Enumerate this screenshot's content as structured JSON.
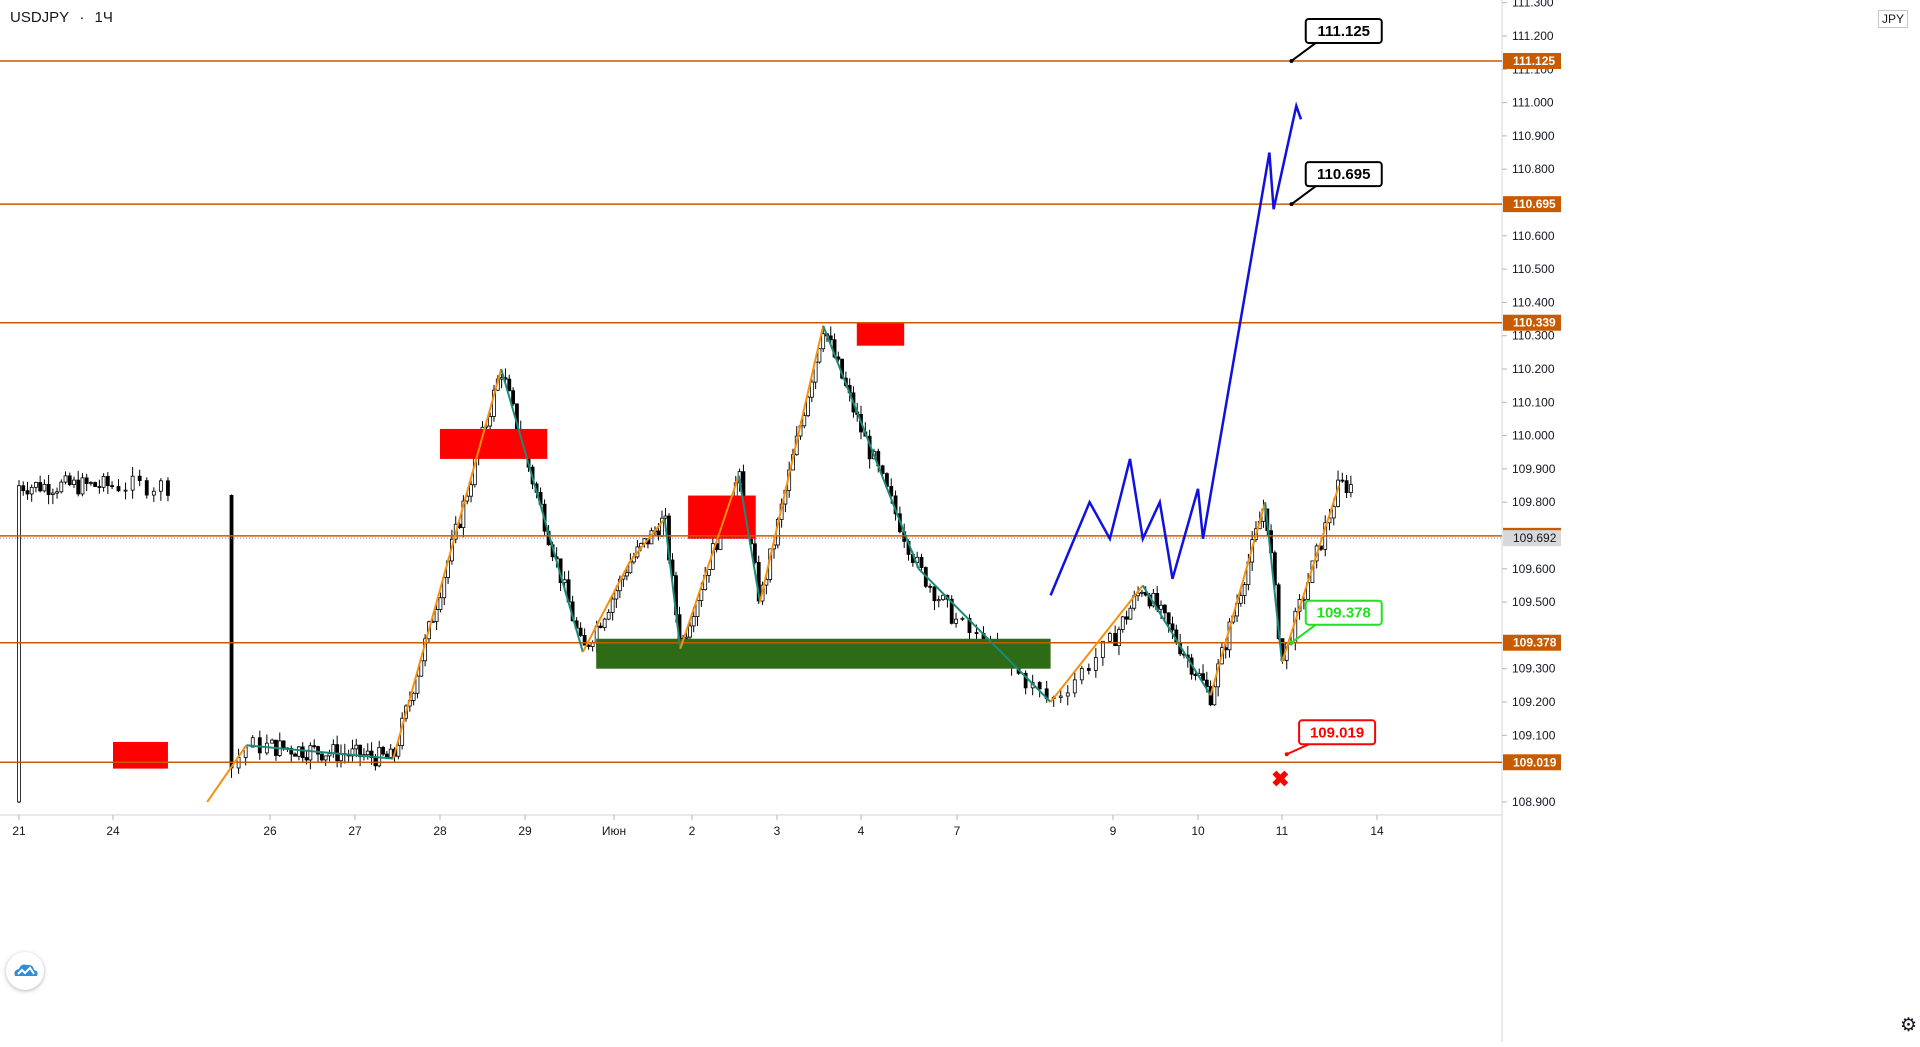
{
  "header": {
    "symbol": "USDJPY",
    "separator": "·",
    "interval": "1Ч"
  },
  "currency": "JPY",
  "logo_icon": "tradingview-cloud-icon",
  "settings_icon": "gear-icon",
  "colors": {
    "level_line": "#c85a00",
    "candle": "#000000",
    "resistance_zone": "#ff0000",
    "support_zone": "#2e6b17",
    "zigzag_up": "#f5900f",
    "zigzag_down": "#1a8a7a",
    "forecast": "#1010e0",
    "target_label_border": "#000000",
    "entry_label_border": "#20e020",
    "stop_label_border": "#ff0000"
  },
  "chart_data": {
    "type": "candlestick",
    "ylim": [
      108.85,
      111.3
    ],
    "y_ticks": [
      "111.300",
      "111.200",
      "111.100",
      "111.000",
      "110.900",
      "110.800",
      "110.600",
      "110.500",
      "110.400",
      "110.300",
      "110.200",
      "110.100",
      "110.000",
      "109.900",
      "109.800",
      "109.600",
      "109.500",
      "109.300",
      "109.200",
      "109.100",
      "108.900"
    ],
    "x_ticks": [
      {
        "label": "21",
        "x": 0
      },
      {
        "label": "24",
        "x": 1
      },
      {
        "label": "26",
        "x": 2
      },
      {
        "label": "27",
        "x": 3
      },
      {
        "label": "28",
        "x": 4
      },
      {
        "label": "29",
        "x": 5
      },
      {
        "label": "Июн",
        "x": 6
      },
      {
        "label": "2",
        "x": 7
      },
      {
        "label": "3",
        "x": 8
      },
      {
        "label": "4",
        "x": 9
      },
      {
        "label": "7",
        "x": 10
      },
      {
        "label": "9",
        "x": 11
      },
      {
        "label": "10",
        "x": 12
      },
      {
        "label": "11",
        "x": 13
      },
      {
        "label": "14",
        "x": 14
      }
    ],
    "levels": [
      {
        "price": 111.125,
        "label": "111.125"
      },
      {
        "price": 110.695,
        "label": "110.695"
      },
      {
        "price": 110.339,
        "label": "110.339"
      },
      {
        "price": 109.699,
        "label": "109.699"
      },
      {
        "price": 109.378,
        "label": "109.378"
      },
      {
        "price": 109.019,
        "label": "109.019"
      }
    ],
    "current_price": {
      "price": 109.692,
      "label": "109.692"
    },
    "annotations": [
      {
        "kind": "target",
        "text": "111.125",
        "price": 111.125
      },
      {
        "kind": "target",
        "text": "110.695",
        "price": 110.695
      },
      {
        "kind": "entry",
        "text": "109.378",
        "price": 109.378
      },
      {
        "kind": "stop",
        "text": "109.019",
        "price": 109.019
      }
    ],
    "zones": [
      {
        "kind": "resistance",
        "x": [
          1.0,
          1.35
        ],
        "y": [
          109.0,
          109.08
        ]
      },
      {
        "kind": "resistance",
        "x": [
          4.0,
          5.25
        ],
        "y": [
          109.93,
          110.02
        ]
      },
      {
        "kind": "resistance",
        "x": [
          6.95,
          7.75
        ],
        "y": [
          109.69,
          109.82
        ]
      },
      {
        "kind": "resistance",
        "x": [
          8.95,
          9.45
        ],
        "y": [
          110.27,
          110.34
        ]
      },
      {
        "kind": "support",
        "x": [
          5.8,
          10.6
        ],
        "y": [
          109.3,
          109.39
        ]
      }
    ],
    "zigzag": [
      [
        1.6,
        108.9
      ],
      [
        1.85,
        109.07
      ],
      [
        3.45,
        109.03
      ],
      [
        4.72,
        110.2
      ],
      [
        5.65,
        109.35
      ],
      [
        6.2,
        109.62
      ],
      [
        6.65,
        109.75
      ],
      [
        6.85,
        109.36
      ],
      [
        7.55,
        109.88
      ],
      [
        7.8,
        109.5
      ],
      [
        8.55,
        110.33
      ],
      [
        9.6,
        109.6
      ],
      [
        10.6,
        109.2
      ],
      [
        11.35,
        109.55
      ],
      [
        12.15,
        109.22
      ],
      [
        12.8,
        109.8
      ],
      [
        13.0,
        109.32
      ],
      [
        13.6,
        109.85
      ]
    ],
    "forecast": [
      [
        10.6,
        109.52
      ],
      [
        10.85,
        109.8
      ],
      [
        10.98,
        109.69
      ],
      [
        11.2,
        109.93
      ],
      [
        11.35,
        109.69
      ],
      [
        11.55,
        109.8
      ],
      [
        11.7,
        109.57
      ],
      [
        12.0,
        109.84
      ],
      [
        12.06,
        109.69
      ],
      [
        12.85,
        110.85
      ],
      [
        12.9,
        110.68
      ],
      [
        13.15,
        110.99
      ],
      [
        13.2,
        110.95
      ]
    ],
    "stop_marker": {
      "symbol": "✖",
      "price": 109.0
    }
  }
}
